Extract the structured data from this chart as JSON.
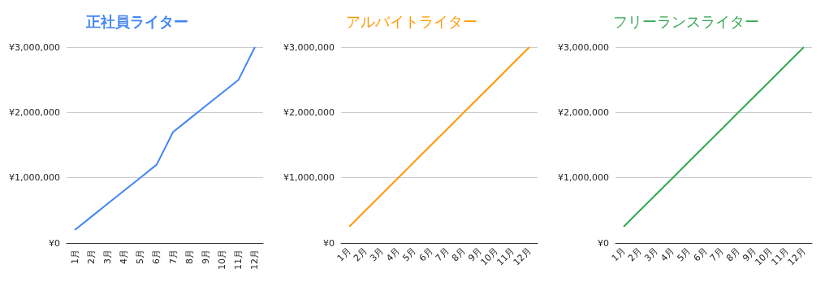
{
  "chart_data": [
    {
      "type": "line",
      "title": "正社員ライター",
      "categories": [
        "1月",
        "2月",
        "3月",
        "4月",
        "5月",
        "6月",
        "7月",
        "8月",
        "9月",
        "10月",
        "11月",
        "12月"
      ],
      "series": [
        {
          "color": "#4285f4",
          "values": [
            200000,
            400000,
            600000,
            800000,
            1000000,
            1200000,
            1700000,
            1900000,
            2100000,
            2300000,
            2500000,
            3000000
          ]
        }
      ],
      "ylim": [
        0,
        3000000
      ],
      "yticks": [
        {
          "value": 0,
          "label": "¥0"
        },
        {
          "value": 1000000,
          "label": "¥1,000,000"
        },
        {
          "value": 2000000,
          "label": "¥2,000,000"
        },
        {
          "value": 3000000,
          "label": "¥3,000,000"
        }
      ],
      "grid": "y",
      "marker": "none"
    },
    {
      "type": "line",
      "title": "アルバイトライター",
      "categories": [
        "1月",
        "2月",
        "3月",
        "4月",
        "5月",
        "6月",
        "7月",
        "8月",
        "9月",
        "10月",
        "11月",
        "12月"
      ],
      "series": [
        {
          "color": "#ff9900",
          "values": [
            250000,
            500000,
            750000,
            1000000,
            1250000,
            1500000,
            1750000,
            2000000,
            2250000,
            2500000,
            2750000,
            3000000
          ]
        }
      ],
      "ylim": [
        0,
        3000000
      ],
      "yticks": [
        {
          "value": 0,
          "label": "¥0"
        },
        {
          "value": 1000000,
          "label": "¥1,000,000"
        },
        {
          "value": 2000000,
          "label": "¥2,000,000"
        },
        {
          "value": 3000000,
          "label": "¥3,000,000"
        }
      ],
      "grid": "y",
      "marker": "none"
    },
    {
      "type": "line",
      "title": "フリーランスライター",
      "categories": [
        "1月",
        "2月",
        "3月",
        "4月",
        "5月",
        "6月",
        "7月",
        "8月",
        "9月",
        "10月",
        "11月",
        "12月"
      ],
      "series": [
        {
          "color": "#34a853",
          "values": [
            250000,
            500000,
            750000,
            1000000,
            1250000,
            1500000,
            1750000,
            2000000,
            2250000,
            2500000,
            2750000,
            3000000
          ]
        }
      ],
      "ylim": [
        0,
        3000000
      ],
      "yticks": [
        {
          "value": 0,
          "label": "¥0"
        },
        {
          "value": 1000000,
          "label": "¥1,000,000"
        },
        {
          "value": 2000000,
          "label": "¥2,000,000"
        },
        {
          "value": 3000000,
          "label": "¥3,000,000"
        }
      ],
      "grid": "y",
      "marker": "none"
    }
  ]
}
